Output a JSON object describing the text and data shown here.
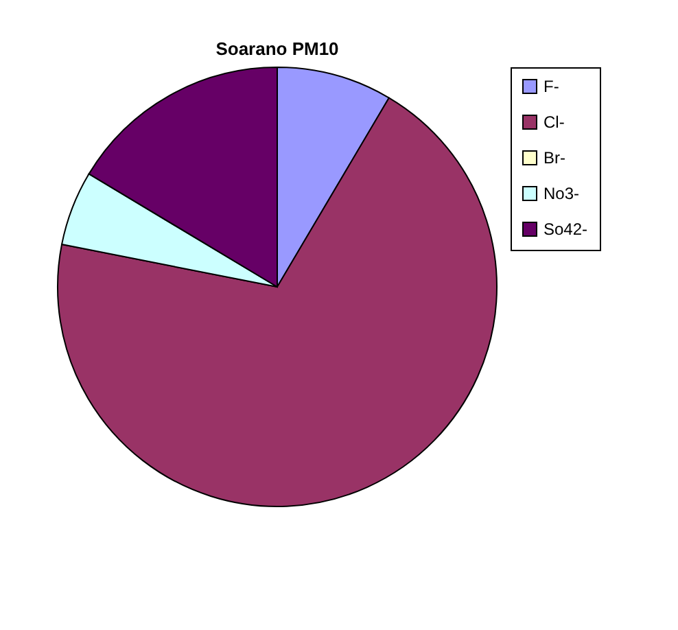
{
  "chart_data": {
    "type": "pie",
    "title": "Soarano PM10",
    "categories": [
      "F-",
      "Cl-",
      "Br-",
      "No3-",
      "So42-"
    ],
    "values": [
      8.5,
      69.6,
      null,
      5.5,
      16.4
    ],
    "colors": [
      "#9999ff",
      "#993366",
      "#ffffcc",
      "#ccffff",
      "#660066"
    ],
    "legend": "right"
  }
}
